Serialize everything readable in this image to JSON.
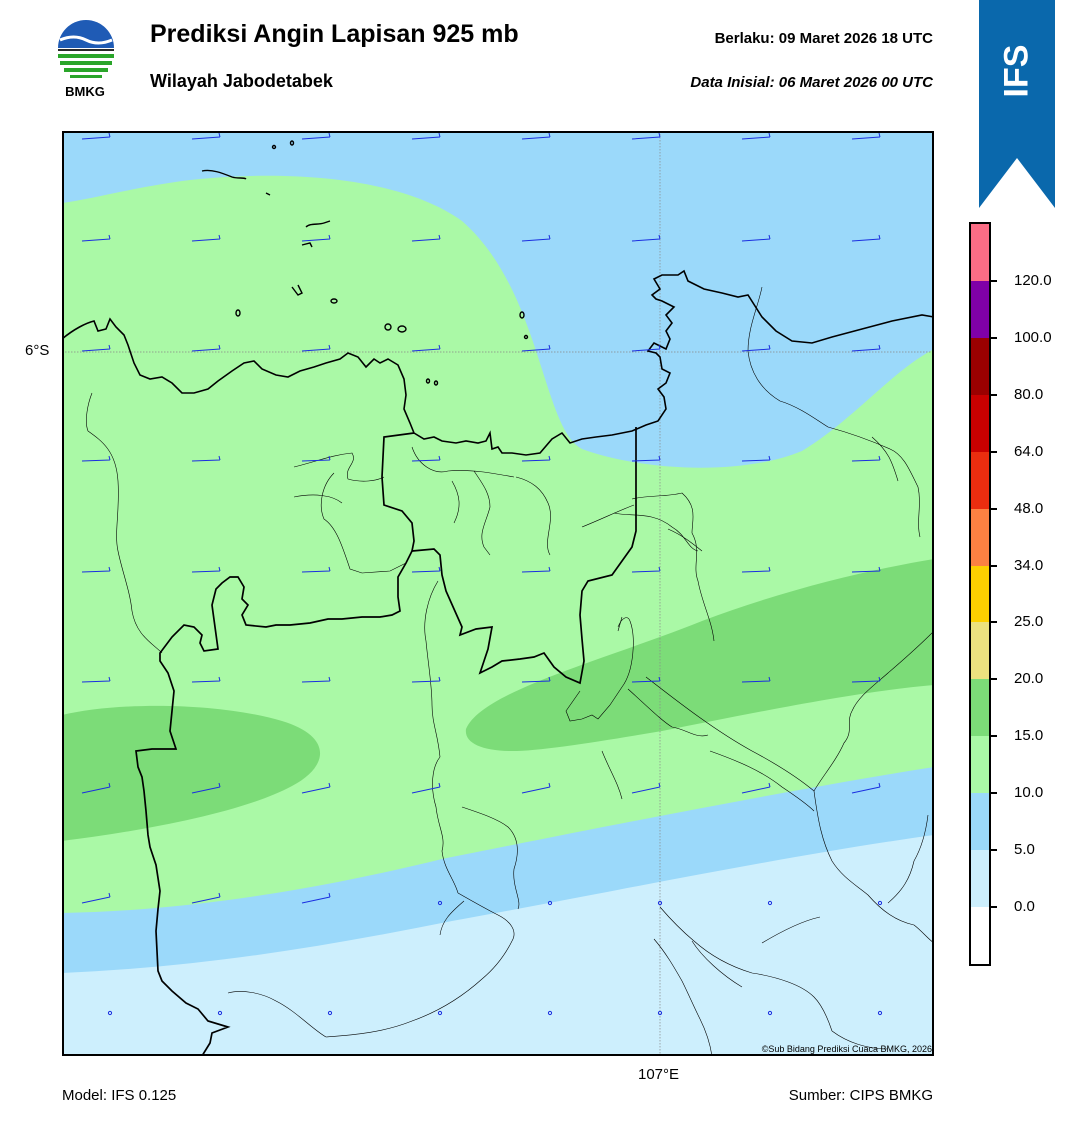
{
  "header": {
    "title": "Prediksi Angin Lapisan 925 mb",
    "subtitle": "Wilayah Jabodetabek",
    "valid_time": "Berlaku:  09 Maret 2026 18 UTC",
    "init_time": "Data Inisial:  06 Maret 2026 00 UTC",
    "logo_text": "BMKG",
    "model_badge": "IFS"
  },
  "map": {
    "lat_label": "6°S",
    "lon_label": "107°E",
    "copyright": "©Sub Bidang Prediksi Cuaca BMKG, 2026"
  },
  "footer": {
    "model": "Model: IFS 0.125",
    "source": "Sumber: CIPS BMKG"
  },
  "colorbar": {
    "segments": [
      {
        "color": "#ffffff",
        "range": "below 0.0"
      },
      {
        "color": "#cdeffd",
        "range": "0–5"
      },
      {
        "color": "#9bd9fa",
        "range": "5–10"
      },
      {
        "color": "#aaf9a6",
        "range": "10–15"
      },
      {
        "color": "#7cdc78",
        "range": "15–20"
      },
      {
        "color": "#ece17f",
        "range": "20–25"
      },
      {
        "color": "#fdd000",
        "range": "25–34"
      },
      {
        "color": "#fc8142",
        "range": "34–48"
      },
      {
        "color": "#ea2d0f",
        "range": "48–64"
      },
      {
        "color": "#c90000",
        "range": "64–80"
      },
      {
        "color": "#9a0000",
        "range": "80–100"
      },
      {
        "color": "#7f00a7",
        "range": "100–120"
      },
      {
        "color": "#fb6d85",
        "range": "above 120"
      }
    ],
    "labels": [
      "0.0",
      "5.0",
      "10.0",
      "15.0",
      "20.0",
      "25.0",
      "34.0",
      "48.0",
      "64.0",
      "80.0",
      "100.0",
      "120.0"
    ]
  },
  "colors": {
    "ribbon": "#0a68ac",
    "wind_barb": "#1a2ee0"
  }
}
